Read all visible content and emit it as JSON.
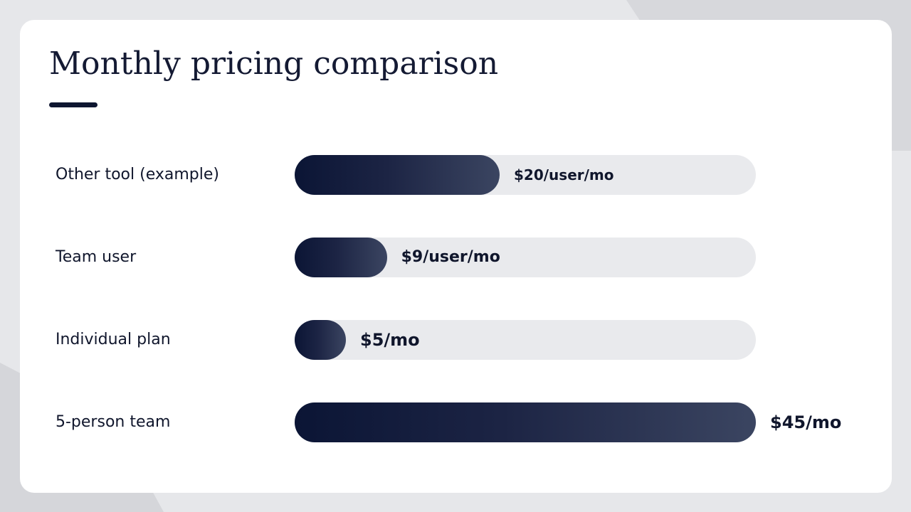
{
  "title": "Monthly pricing comparison",
  "chart_data": {
    "type": "bar",
    "orientation": "horizontal",
    "categories": [
      "Other tool (example)",
      "Team user",
      "Individual plan",
      "5-person team"
    ],
    "values": [
      20,
      9,
      5,
      45
    ],
    "value_labels": [
      "$20/user/mo",
      "$9/user/mo",
      "$5/mo",
      "$45/mo"
    ],
    "xlim": [
      0,
      45
    ],
    "grid": false,
    "colors": {
      "bar_start": "#0b1535",
      "bar_end": "#3b4561",
      "track": "#e9eaed"
    }
  }
}
